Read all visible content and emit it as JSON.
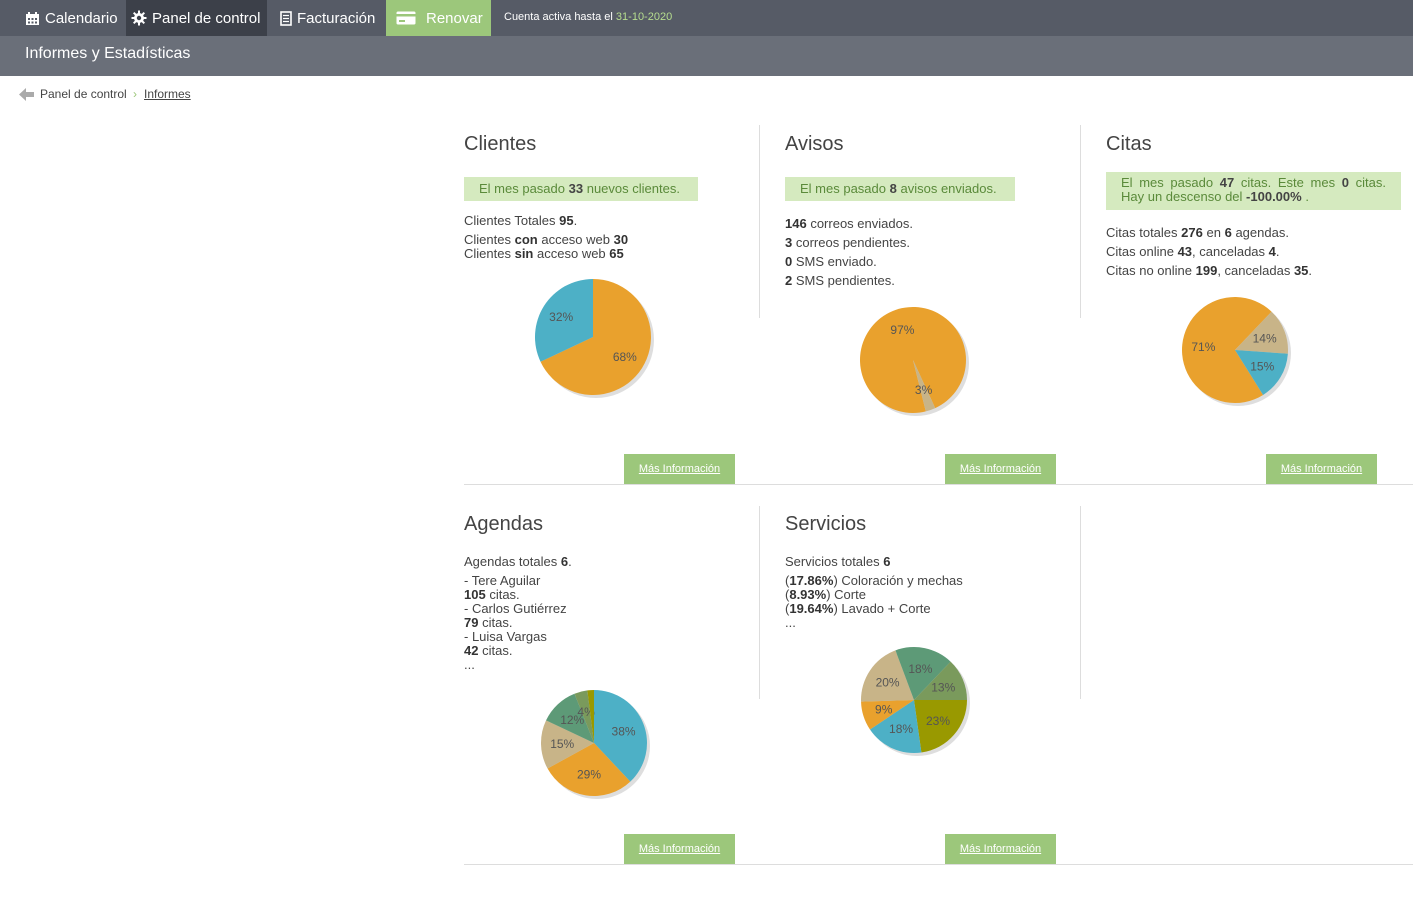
{
  "nav": {
    "calendar": "Calendario",
    "control_panel": "Panel de control",
    "billing": "Facturación",
    "renew": "Renovar",
    "account_prefix": "Cuenta activa hasta el",
    "account_date": "31-10-2020"
  },
  "subheader": {
    "title": "Informes y Estadísticas"
  },
  "breadcrumb": {
    "parent": "Panel de control",
    "current": "Informes"
  },
  "more_info": "Más Información",
  "colors": {
    "orange": "#e9a12d",
    "blue": "#4db0c6",
    "tan": "#c8b488",
    "green": "#5d9a77",
    "olive": "#999900",
    "sage": "#7a9a5c",
    "light_green": "#9cc77b"
  },
  "clientes": {
    "title": "Clientes",
    "highlight": {
      "a": "El mes pasado",
      "n": "33",
      "b": "nuevos clientes."
    },
    "total": {
      "a": "Clientes Totales",
      "n": "95",
      "b": "."
    },
    "con": {
      "a": "Clientes",
      "kw": "con",
      "b": "acceso web",
      "n": "30"
    },
    "sin": {
      "a": "Clientes",
      "kw": "sin",
      "b": "acceso web",
      "n": "65"
    },
    "pie": [
      {
        "value": 68,
        "label": "68%",
        "color": "#e9a12d"
      },
      {
        "value": 32,
        "label": "32%",
        "color": "#4db0c6"
      }
    ]
  },
  "avisos": {
    "title": "Avisos",
    "highlight": {
      "a": "El mes pasado",
      "n": "8",
      "b": "avisos enviados."
    },
    "lines": [
      {
        "n": "146",
        "t": "correos enviados."
      },
      {
        "n": "3",
        "t": "correos pendientes."
      },
      {
        "n": "0",
        "t": "SMS enviado."
      },
      {
        "n": "2",
        "t": "SMS pendientes."
      }
    ],
    "pie": [
      {
        "value": 97,
        "label": "97%",
        "color": "#e9a12d"
      },
      {
        "value": 3,
        "label": "3%",
        "color": "#c8b488"
      }
    ]
  },
  "citas": {
    "title": "Citas",
    "highlight": {
      "a": "El mes pasado",
      "n1": "47",
      "b": "citas. Este mes",
      "n2": "0",
      "c": "citas.",
      "d": "Hay un descenso del",
      "pct": "-100.00%",
      "e": "."
    },
    "line1": {
      "a": "Citas totales",
      "n1": "276",
      "b": "en",
      "n2": "6",
      "c": "agendas."
    },
    "line2": {
      "a": "Citas online",
      "n1": "43",
      "b": ", canceladas",
      "n2": "4",
      "c": "."
    },
    "line3": {
      "a": "Citas no online",
      "n1": "199",
      "b": ", canceladas",
      "n2": "35",
      "c": "."
    },
    "pie": [
      {
        "value": 71,
        "label": "71%",
        "color": "#e9a12d"
      },
      {
        "value": 14,
        "label": "14%",
        "color": "#c8b488"
      },
      {
        "value": 15,
        "label": "15%",
        "color": "#4db0c6"
      }
    ]
  },
  "agendas": {
    "title": "Agendas",
    "total": {
      "a": "Agendas totales",
      "n": "6",
      "b": "."
    },
    "items": [
      {
        "name": "- Tere Aguilar",
        "n": "105",
        "t": "citas."
      },
      {
        "name": "- Carlos Gutiérrez",
        "n": "79",
        "t": "citas."
      },
      {
        "name": "- Luisa Vargas",
        "n": "42",
        "t": "citas."
      }
    ],
    "ellipsis": "...",
    "pie": [
      {
        "value": 38,
        "label": "38%",
        "color": "#4db0c6"
      },
      {
        "value": 29,
        "label": "29%",
        "color": "#e9a12d"
      },
      {
        "value": 15,
        "label": "15%",
        "color": "#c8b488"
      },
      {
        "value": 12,
        "label": "12%",
        "color": "#5d9a77"
      },
      {
        "value": 4,
        "label": "4%",
        "color": "#7a9a5c"
      },
      {
        "value": 2,
        "label": "",
        "color": "#999900"
      }
    ]
  },
  "servicios": {
    "title": "Servicios",
    "total": {
      "a": "Servicios totales",
      "n": "6"
    },
    "items": [
      {
        "pct": "17.86%",
        "name": "Coloración y mechas"
      },
      {
        "pct": "8.93%",
        "name": "Corte"
      },
      {
        "pct": "19.64%",
        "name": "Lavado + Corte"
      }
    ],
    "ellipsis": "...",
    "pie": [
      {
        "value": 23,
        "label": "23%",
        "color": "#999900"
      },
      {
        "value": 18,
        "label": "18%",
        "color": "#4db0c6"
      },
      {
        "value": 9,
        "label": "9%",
        "color": "#e9a12d"
      },
      {
        "value": 20,
        "label": "20%",
        "color": "#c8b488"
      },
      {
        "value": 18,
        "label": "18%",
        "color": "#5d9a77"
      },
      {
        "value": 13,
        "label": "13%",
        "color": "#7a9a5c"
      }
    ]
  }
}
